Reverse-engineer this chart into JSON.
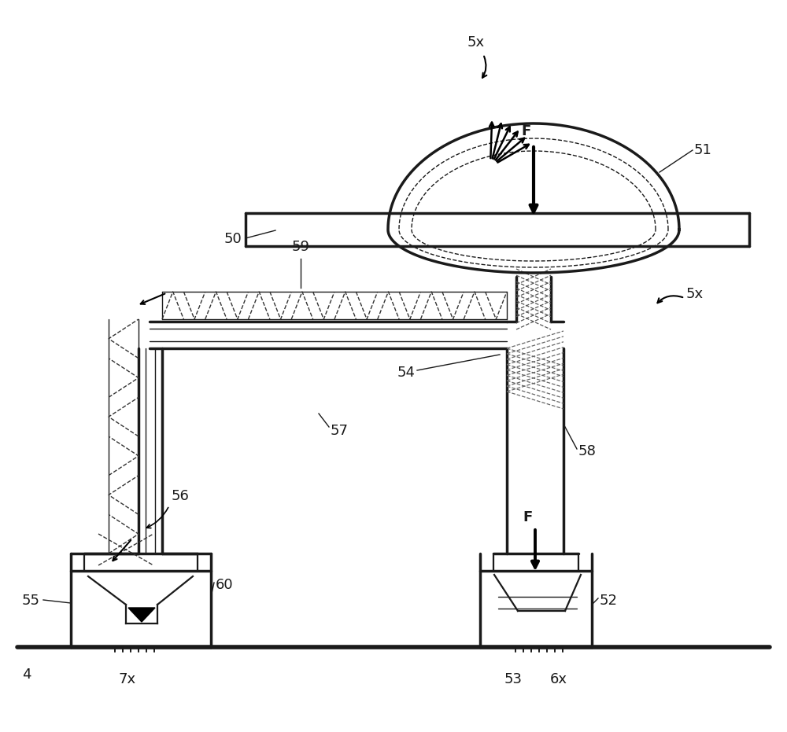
{
  "bg_color": "#ffffff",
  "lc": "#1a1a1a",
  "lw_thick": 2.5,
  "lw_med": 1.6,
  "lw_thin": 1.0,
  "fs": 13,
  "labels": {
    "5x_top": "5x",
    "5x_right": "5x",
    "51": "51",
    "50": "50",
    "54": "54",
    "59": "59",
    "57": "57",
    "56": "56",
    "55": "55",
    "60": "60",
    "4": "4",
    "7x": "7x",
    "52": "52",
    "53": "53",
    "6x": "6x",
    "58": "58",
    "F_top": "F",
    "F_bot": "F"
  }
}
